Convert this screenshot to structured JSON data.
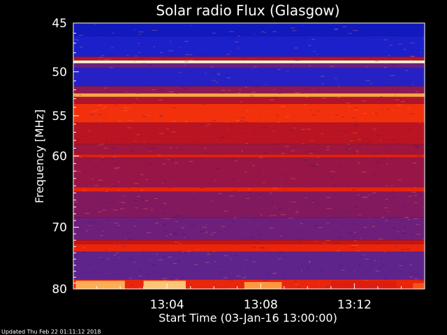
{
  "chart_data": {
    "type": "heatmap",
    "title": "Solar radio Flux (Glasgow)",
    "xlabel": "Start Time (03-Jan-16 13:00:00)",
    "ylabel": "Frequency [MHz]",
    "x_start": "13:00:00",
    "x_end": "13:15:00",
    "x_ticks": [
      "13:04",
      "13:08",
      "13:12"
    ],
    "x_tick_minutes": [
      4,
      8,
      12
    ],
    "x_range_minutes": [
      0,
      15
    ],
    "y_ticks": [
      45,
      50,
      55,
      60,
      70,
      80
    ],
    "y_range": [
      45,
      80
    ],
    "y_scale": "log",
    "colormap": "blue-purple-red-yellow-white",
    "bands": [
      {
        "from": 45.0,
        "to": 46.3,
        "level": 0.08
      },
      {
        "from": 46.3,
        "to": 48.4,
        "level": 0.12
      },
      {
        "from": 48.4,
        "to": 48.8,
        "level": 0.55
      },
      {
        "from": 48.8,
        "to": 49.1,
        "level": 0.98
      },
      {
        "from": 49.1,
        "to": 49.6,
        "level": 0.35
      },
      {
        "from": 49.6,
        "to": 51.6,
        "level": 0.14
      },
      {
        "from": 51.6,
        "to": 52.4,
        "level": 0.45
      },
      {
        "from": 52.4,
        "to": 52.8,
        "level": 0.88
      },
      {
        "from": 52.8,
        "to": 53.6,
        "level": 0.55
      },
      {
        "from": 53.6,
        "to": 55.8,
        "level": 0.75
      },
      {
        "from": 55.8,
        "to": 58.5,
        "level": 0.58
      },
      {
        "from": 58.5,
        "to": 59.8,
        "level": 0.5
      },
      {
        "from": 59.8,
        "to": 60.2,
        "level": 0.7
      },
      {
        "from": 60.2,
        "to": 64.2,
        "level": 0.48
      },
      {
        "from": 64.2,
        "to": 64.8,
        "level": 0.72
      },
      {
        "from": 64.8,
        "to": 68.5,
        "level": 0.42
      },
      {
        "from": 68.5,
        "to": 72.0,
        "level": 0.36
      },
      {
        "from": 72.0,
        "to": 72.6,
        "level": 0.62
      },
      {
        "from": 72.6,
        "to": 73.8,
        "level": 0.72
      },
      {
        "from": 73.8,
        "to": 78.4,
        "level": 0.32
      },
      {
        "from": 78.4,
        "to": 80.0,
        "level": 0.72
      }
    ],
    "bursts": [
      {
        "t_from": 0.1,
        "t_to": 2.2,
        "f_from": 78.6,
        "f_to": 80.0,
        "level": 0.9
      },
      {
        "t_from": 3.0,
        "t_to": 4.8,
        "f_from": 78.6,
        "f_to": 80.0,
        "level": 0.93
      },
      {
        "t_from": 7.3,
        "t_to": 8.9,
        "f_from": 78.8,
        "f_to": 80.0,
        "level": 0.88
      },
      {
        "t_from": 11.0,
        "t_to": 13.8,
        "f_from": 78.6,
        "f_to": 80.0,
        "level": 0.68
      },
      {
        "t_from": 14.5,
        "t_to": 15.0,
        "f_from": 79.0,
        "f_to": 80.0,
        "level": 0.8
      }
    ]
  },
  "footer": {
    "updated": "Updated Thu Feb 22 01:11:12 2018"
  }
}
